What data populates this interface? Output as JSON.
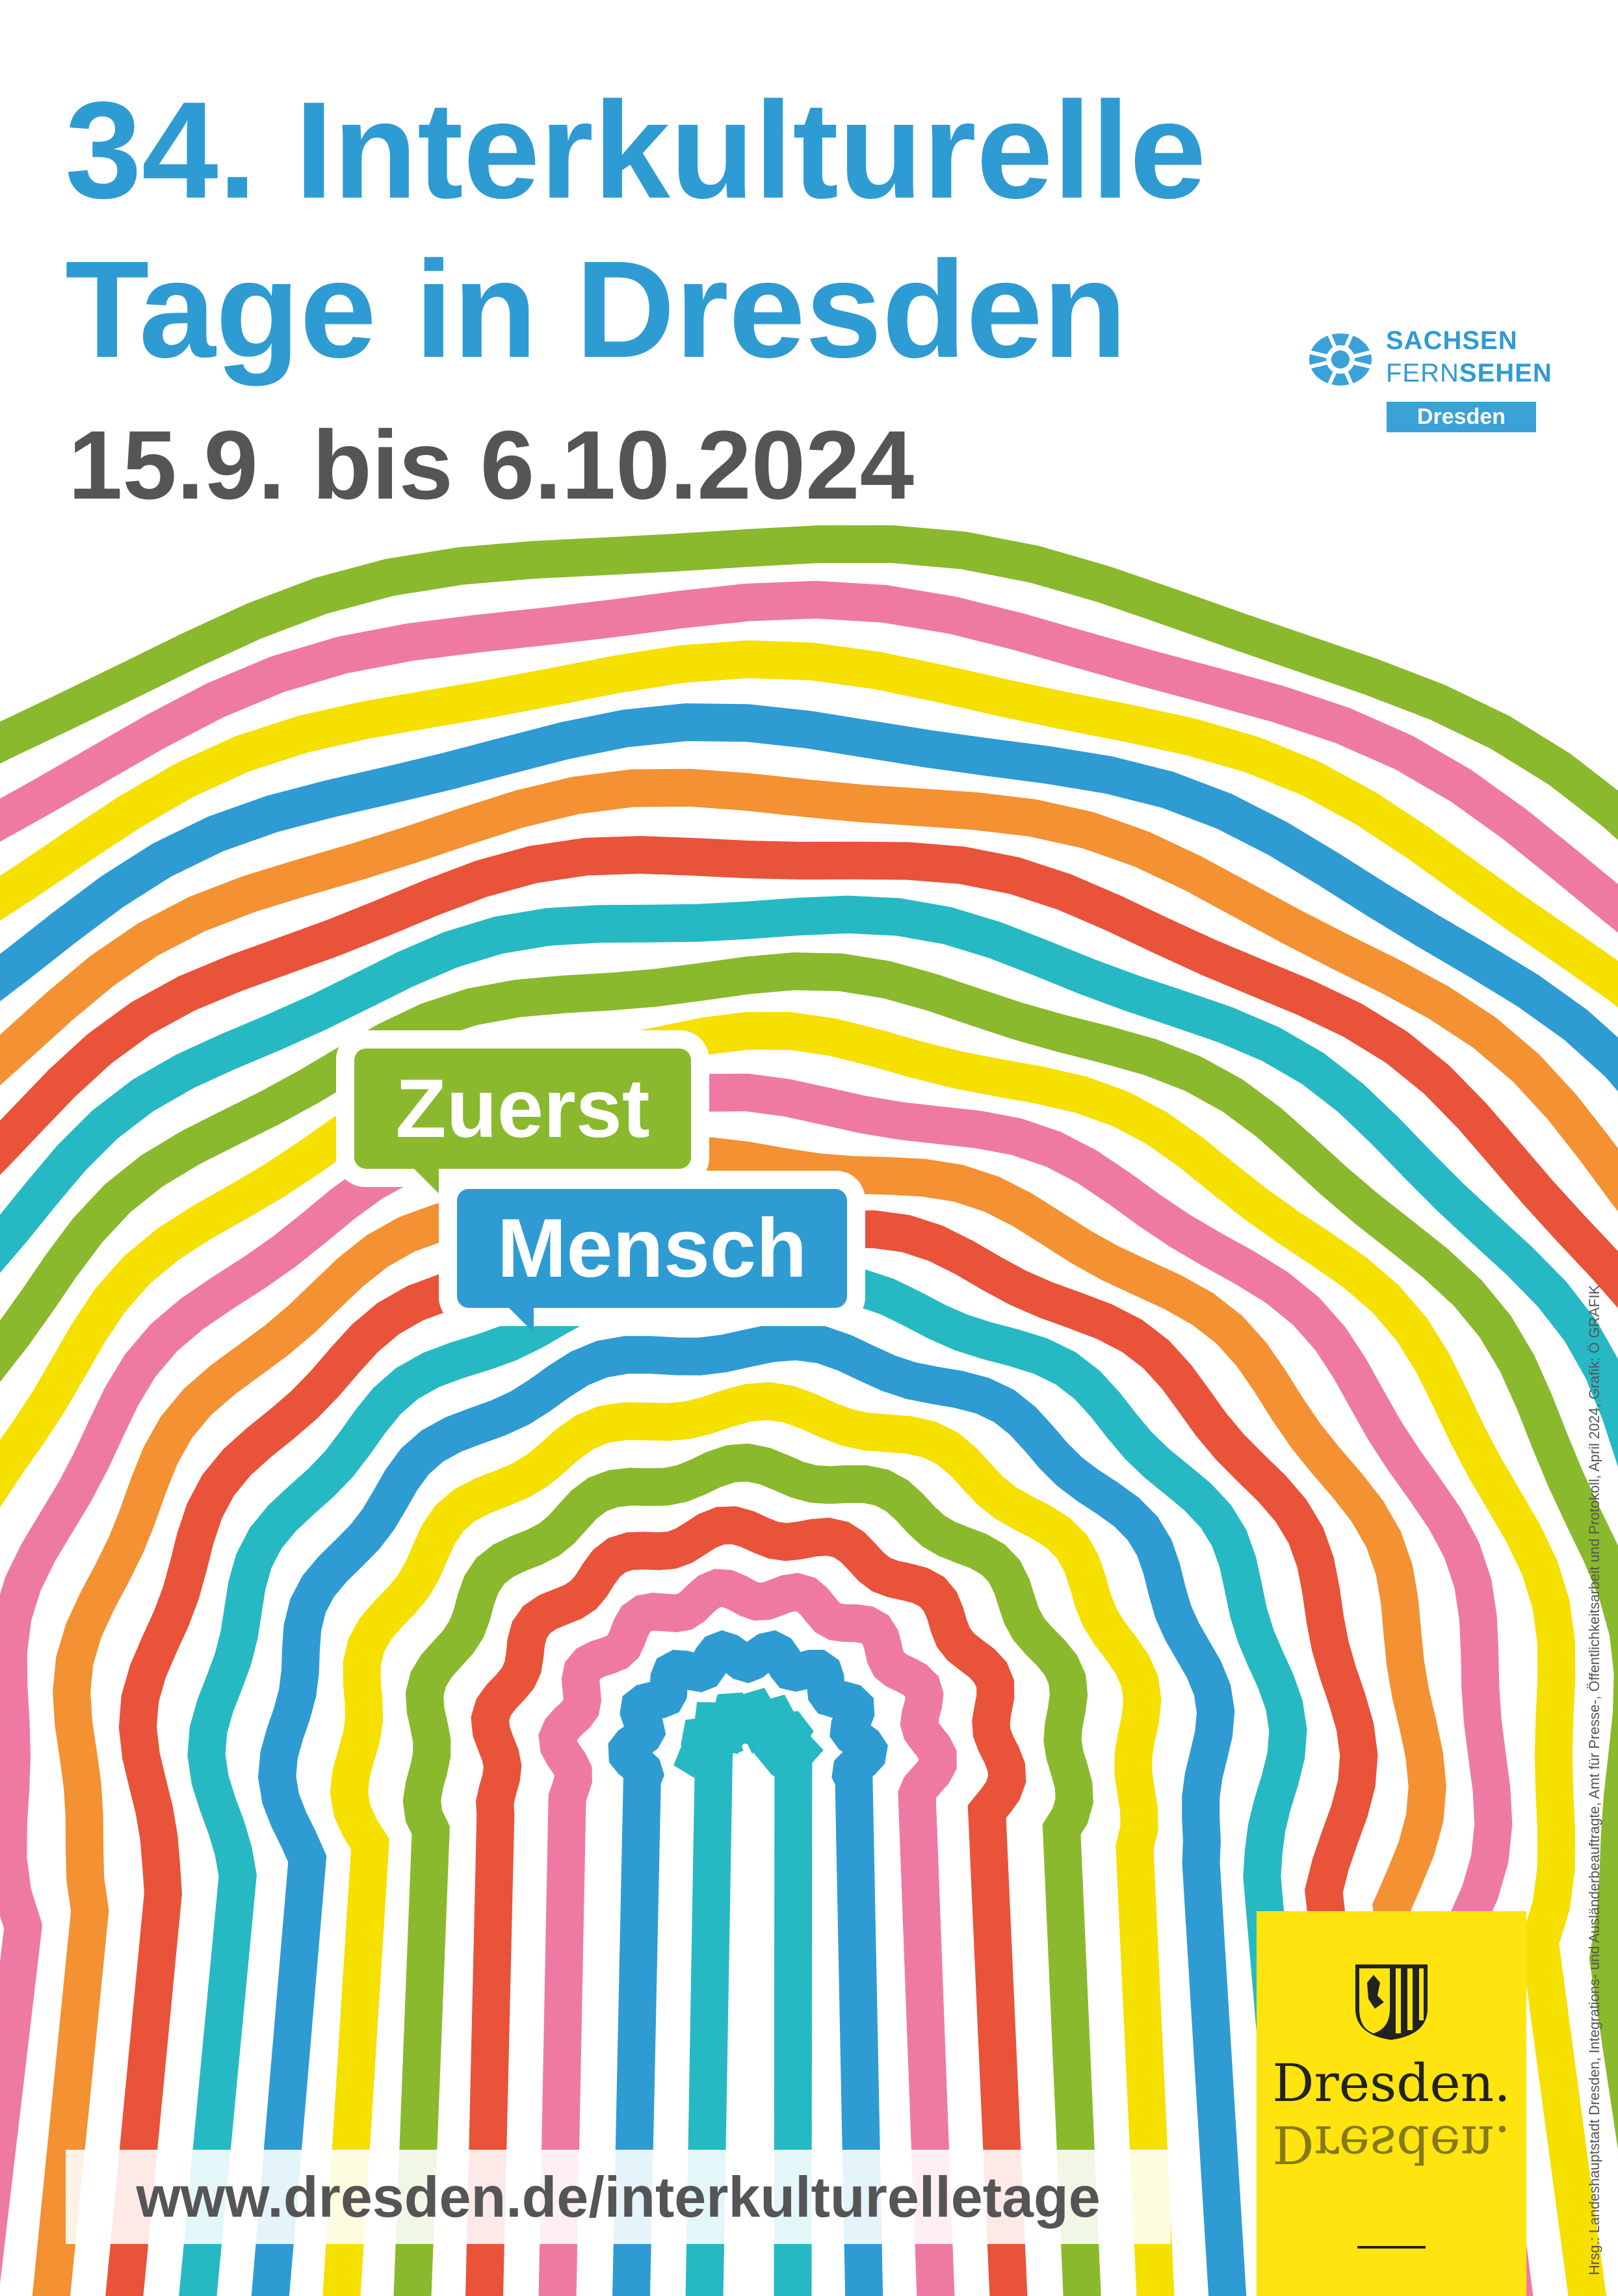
{
  "title": {
    "line1": "34. Interkulturelle",
    "line2": "Tage in Dresden"
  },
  "date": "15.9. bis 6.10.2024",
  "bubbles": {
    "first": "Zuerst",
    "second": "Mensch"
  },
  "url": "www.dresden.de/interkulturelletage",
  "sponsor": {
    "line1": "SACHSEN",
    "line2a": "FERN",
    "line2b": "SEHEN",
    "badge": "Dresden"
  },
  "city_logo": {
    "text": "Dresden.",
    "icon": "coat-of-arms-icon"
  },
  "credit": "Hrsg.: Landeshauptstadt Dresden, Integrations- und Ausländerbeauftragte, Amt für Presse-, Öffentlichkeitsarbeit und Protokoll, April 2024, Grafik: Ö GRAFIK",
  "colors": {
    "title": "#2f9bd3",
    "date": "#555555",
    "fingerprint": [
      "#2f9bd3",
      "#e8533a",
      "#ee7aa3",
      "#27b9c3",
      "#f5e000",
      "#8ab92d",
      "#f39133"
    ],
    "city_box": "#ffe40f"
  }
}
